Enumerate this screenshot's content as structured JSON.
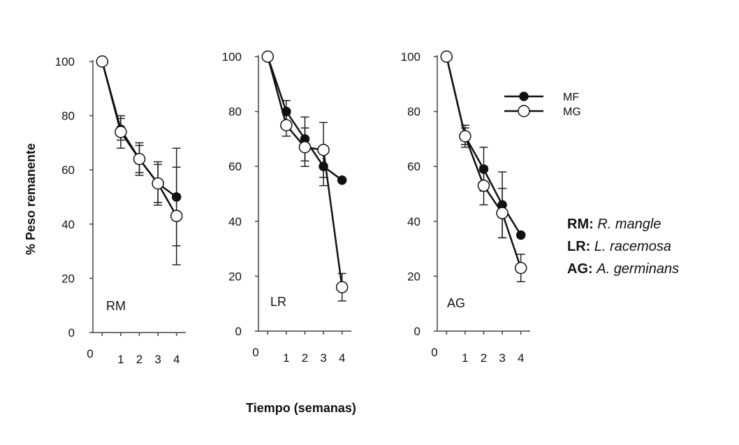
{
  "chart_data": {
    "type": "line",
    "ylabel": "% Peso remanente",
    "xlabel": "Tiempo (semanas)",
    "ylim": [
      0,
      100
    ],
    "yticks": [
      0,
      20,
      40,
      60,
      80,
      100
    ],
    "xticks": [
      0,
      1,
      2,
      3,
      4
    ],
    "grid": false,
    "legend": {
      "placement": "top-right",
      "entries": [
        {
          "name": "MF",
          "marker": "filled-circle"
        },
        {
          "name": "MG",
          "marker": "open-circle"
        }
      ]
    },
    "species_key": [
      {
        "code": "RM:",
        "species": "R. mangle"
      },
      {
        "code": "LR:",
        "species": "L. racemosa"
      },
      {
        "code": "AG:",
        "species": "A. germinans"
      }
    ],
    "panels": [
      {
        "label": "RM",
        "series": [
          {
            "name": "MF",
            "x": [
              0.5,
              1.5,
              2.5,
              3.5,
              4.5
            ],
            "y": [
              100,
              75,
              64,
              55,
              50
            ],
            "err": [
              0,
              4,
              5,
              8,
              18
            ]
          },
          {
            "name": "MG",
            "x": [
              0.5,
              1.5,
              2.5,
              3.5,
              4.5
            ],
            "y": [
              100,
              74,
              64,
              55,
              43
            ],
            "err": [
              0,
              6,
              6,
              7,
              18
            ]
          }
        ]
      },
      {
        "label": "LR",
        "series": [
          {
            "name": "MF",
            "x": [
              0.5,
              1.5,
              2.5,
              3.5,
              4.5
            ],
            "y": [
              100,
              80,
              70,
              60,
              55
            ],
            "err": [
              0,
              4,
              8,
              7,
              0
            ]
          },
          {
            "name": "MG",
            "x": [
              0.5,
              1.5,
              2.5,
              3.5,
              4.5
            ],
            "y": [
              100,
              75,
              67,
              66,
              16
            ],
            "err": [
              0,
              4,
              7,
              10,
              5
            ]
          }
        ]
      },
      {
        "label": "AG",
        "series": [
          {
            "name": "MF",
            "x": [
              0.5,
              1.5,
              2.5,
              3.5,
              4.5
            ],
            "y": [
              100,
              71,
              59,
              46,
              35
            ],
            "err": [
              0,
              4,
              8,
              12,
              0
            ]
          },
          {
            "name": "MG",
            "x": [
              0.5,
              1.5,
              2.5,
              3.5,
              4.5
            ],
            "y": [
              100,
              71,
              53,
              43,
              23
            ],
            "err": [
              0,
              3,
              7,
              9,
              5
            ]
          }
        ]
      }
    ]
  }
}
